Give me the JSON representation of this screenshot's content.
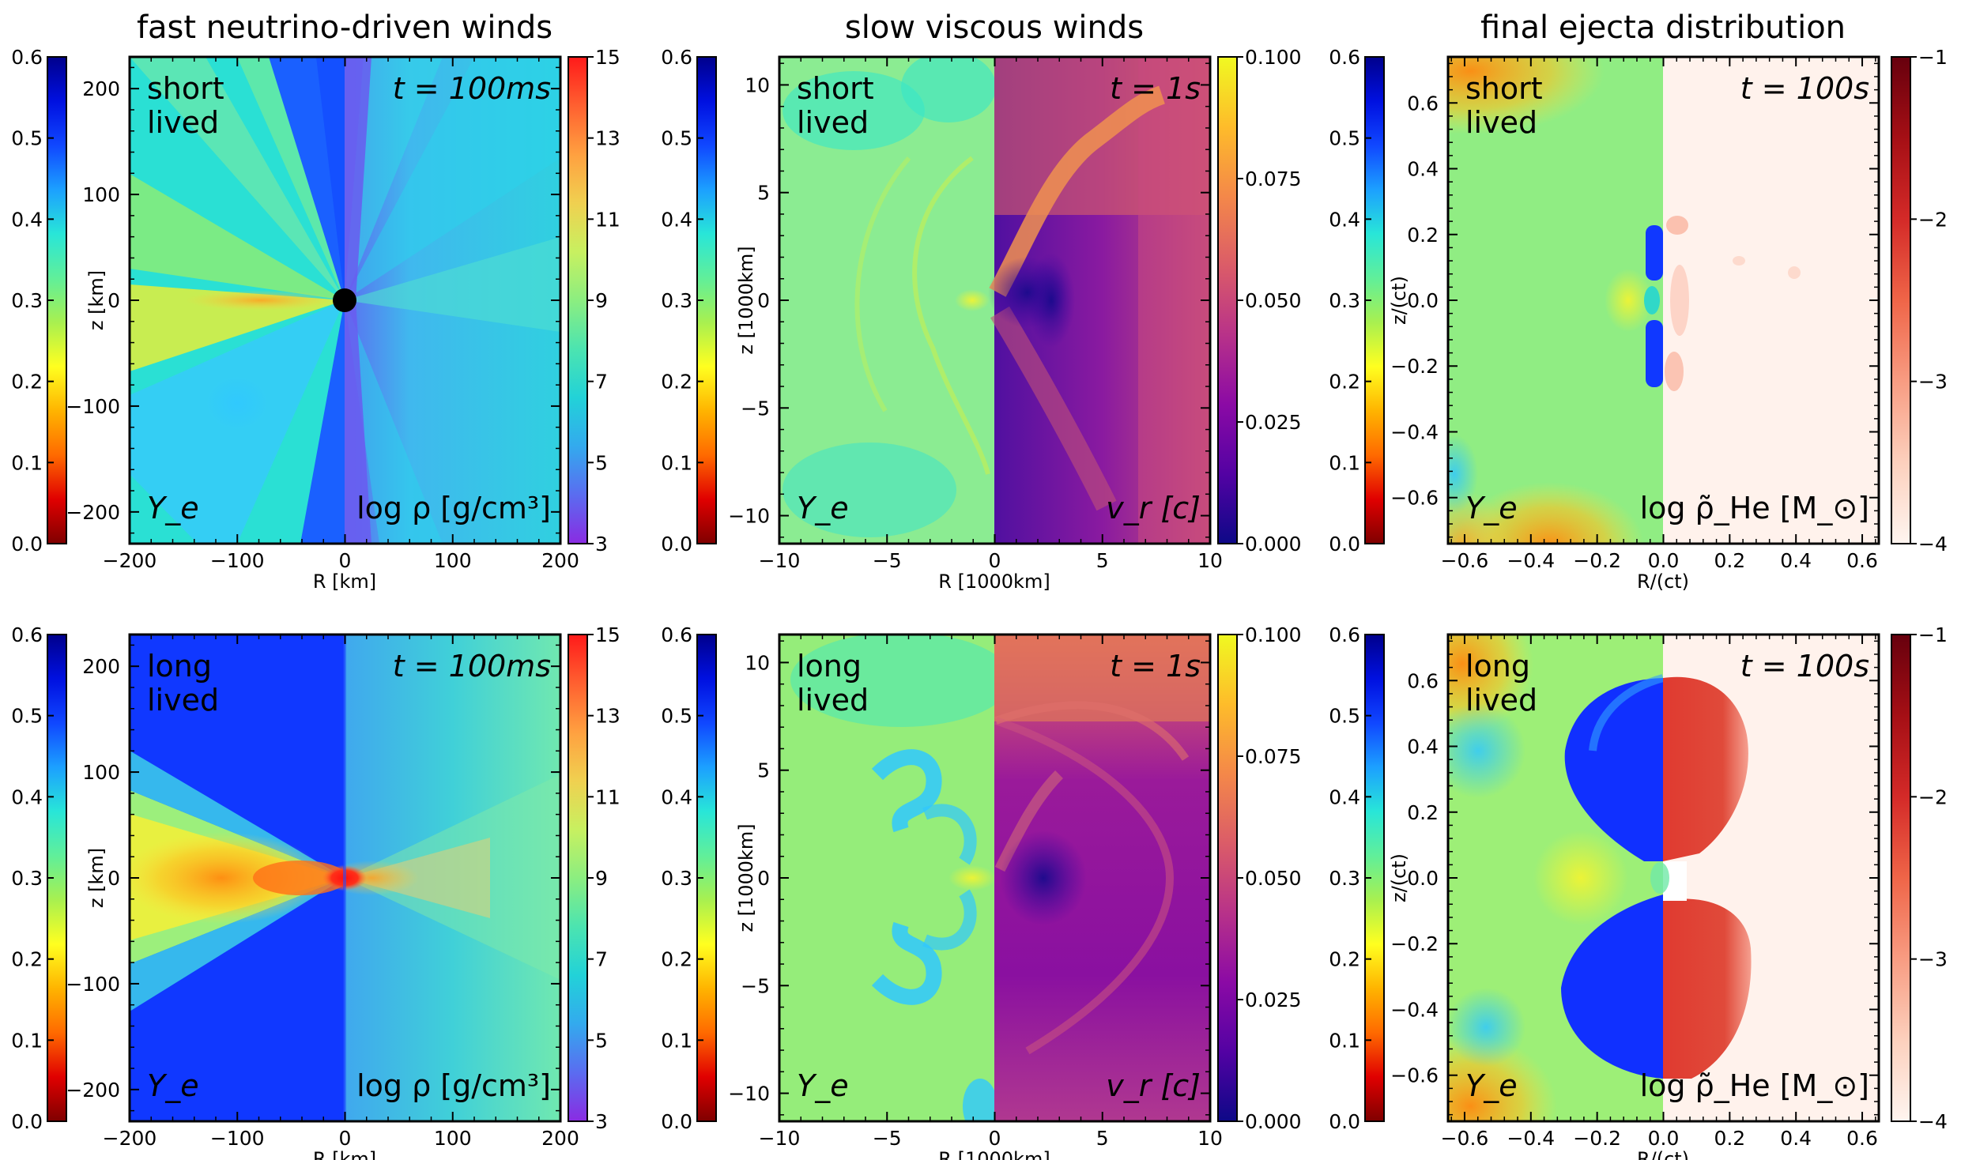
{
  "chart_data": {
    "type": "heatmap",
    "columns": [
      {
        "title": "fast neutrino-driven winds"
      },
      {
        "title": "slow viscous winds"
      },
      {
        "title": "final ejecta distribution"
      }
    ],
    "rows": [
      {
        "label_line1": "short",
        "label_line2": "lived"
      },
      {
        "label_line1": "long",
        "label_line2": "lived"
      }
    ],
    "panels": [
      {
        "id": "fast",
        "time": "t = 100ms",
        "left_field": "Y_e",
        "right_field": "log ρ [g/cm³]",
        "xlabel": "R [km]",
        "ylabel": "z [km]",
        "xlim": [
          -200,
          200
        ],
        "ylim": [
          -230,
          230
        ],
        "xticks": [
          "−200",
          "−100",
          "0",
          "100",
          "200"
        ],
        "xtick_values": [
          -200,
          -100,
          0,
          100,
          200
        ],
        "yticks": [
          "−200",
          "−100",
          "0",
          "100",
          "200"
        ],
        "ytick_values": [
          -200,
          -100,
          0,
          100,
          200
        ]
      },
      {
        "id": "slow",
        "time": "t = 1s",
        "left_field": "Y_e",
        "right_field": "v_r [c]",
        "xlabel": "R [1000km]",
        "ylabel": "z [1000km]",
        "xlim": [
          -10,
          10
        ],
        "ylim": [
          -11.3,
          11.3
        ],
        "xticks": [
          "−10",
          "−5",
          "0",
          "5",
          "10"
        ],
        "xtick_values": [
          -10,
          -5,
          0,
          5,
          10
        ],
        "yticks": [
          "−10",
          "−5",
          "0",
          "5",
          "10"
        ],
        "ytick_values": [
          -10,
          -5,
          0,
          5,
          10
        ]
      },
      {
        "id": "final",
        "time": "t = 100s",
        "left_field": "Y_e",
        "right_field": "log ρ̃_He [M_⊙]",
        "xlabel": "R/(ct)",
        "ylabel": "z/(ct)",
        "xlim": [
          -0.65,
          0.65
        ],
        "ylim": [
          -0.74,
          0.74
        ],
        "xticks": [
          "−0.6",
          "−0.4",
          "−0.2",
          "0.0",
          "0.2",
          "0.4",
          "0.6"
        ],
        "xtick_values": [
          -0.6,
          -0.4,
          -0.2,
          0.0,
          0.2,
          0.4,
          0.6
        ],
        "yticks": [
          "−0.6",
          "−0.4",
          "−0.2",
          "0.0",
          "0.2",
          "0.4",
          "0.6"
        ],
        "ytick_values": [
          -0.6,
          -0.4,
          -0.2,
          0.0,
          0.2,
          0.4,
          0.6
        ]
      }
    ],
    "colorbars": [
      {
        "id": "ye",
        "label": "Y_e",
        "range": [
          0.0,
          0.6
        ],
        "tick_values": [
          0.0,
          0.1,
          0.2,
          0.3,
          0.4,
          0.5,
          0.6
        ],
        "ticks": [
          "0.0",
          "0.1",
          "0.2",
          "0.3",
          "0.4",
          "0.5",
          "0.6"
        ],
        "colors": [
          "#7f0000",
          "#e00000",
          "#ff6a00",
          "#ffb400",
          "#ffff20",
          "#a8f050",
          "#60ef9a",
          "#28e6d8",
          "#1ca0ff",
          "#1047ff",
          "#0010e0",
          "#00008c"
        ]
      },
      {
        "id": "rho",
        "label": "log ρ [g/cm³]",
        "range": [
          3,
          15
        ],
        "tick_values": [
          3,
          5,
          7,
          9,
          11,
          13,
          15
        ],
        "ticks": [
          "3",
          "5",
          "7",
          "9",
          "11",
          "13",
          "15"
        ],
        "colors": [
          "#8a2be2",
          "#5a6cf0",
          "#33aaee",
          "#22d2d8",
          "#4ce4b0",
          "#8cee80",
          "#c8f060",
          "#f0d050",
          "#ffa040",
          "#ff6030",
          "#ff1a1a"
        ]
      },
      {
        "id": "vr",
        "label": "v_r [c]",
        "range": [
          0.0,
          0.1
        ],
        "tick_values": [
          0.0,
          0.025,
          0.05,
          0.075,
          0.1
        ],
        "ticks": [
          "0.000",
          "0.025",
          "0.050",
          "0.075",
          "0.100"
        ],
        "colors": [
          "#0d0887",
          "#5302a3",
          "#8b0aa5",
          "#b83289",
          "#db5c68",
          "#f48849",
          "#febc2a",
          "#f0f921"
        ]
      },
      {
        "id": "he",
        "label": "log ρ̃_He [M_⊙]",
        "range": [
          -4,
          -1
        ],
        "tick_values": [
          -4,
          -3,
          -2,
          -1
        ],
        "ticks": [
          "−4",
          "−3",
          "−2",
          "−1"
        ],
        "colors": [
          "#fff5f0",
          "#fcd0bd",
          "#f89c82",
          "#ef6548",
          "#d42a28",
          "#a50f15",
          "#67000d"
        ]
      }
    ]
  }
}
